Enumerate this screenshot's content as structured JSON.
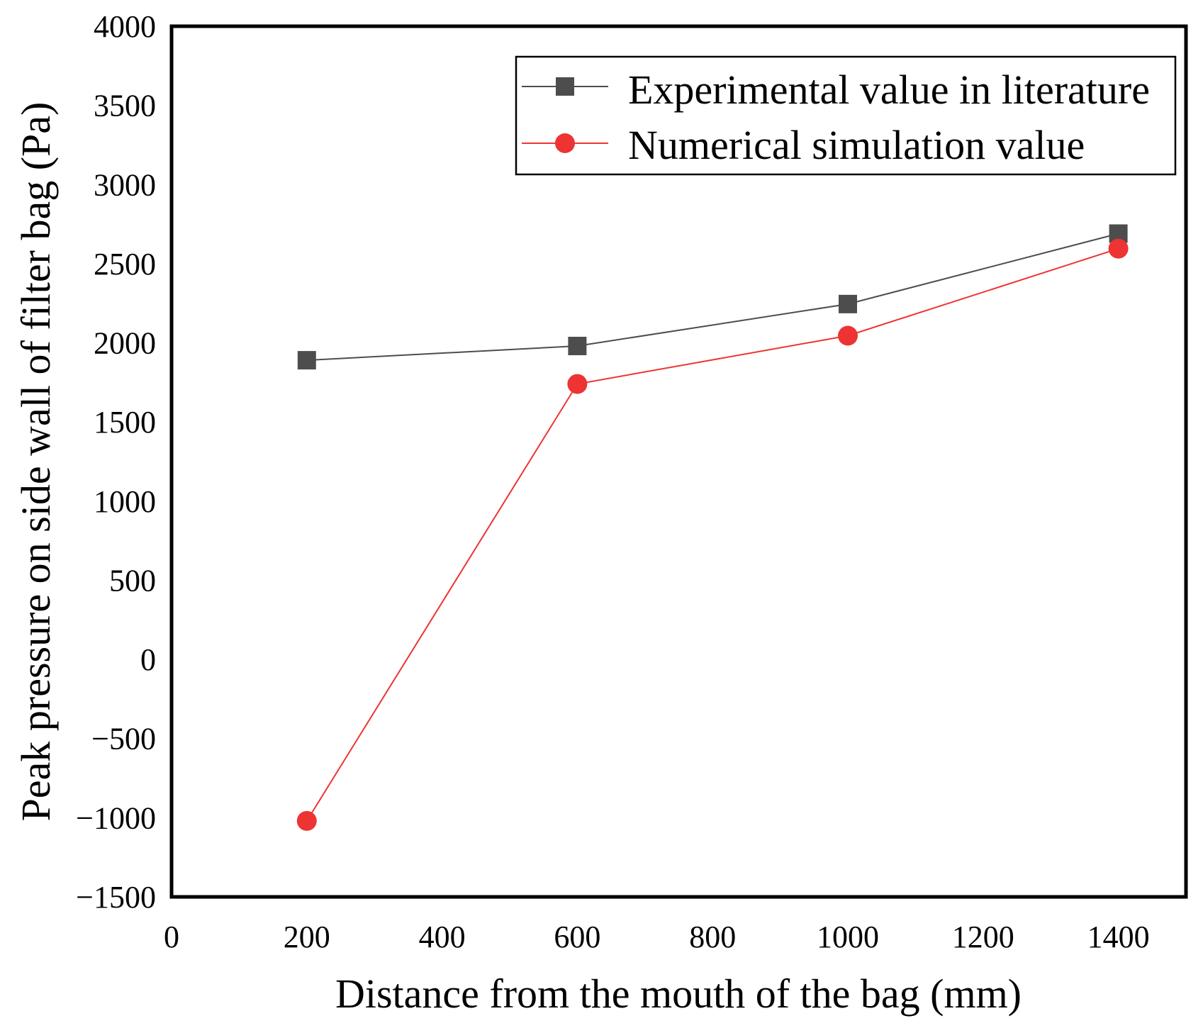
{
  "chart_data": {
    "type": "line",
    "title": "",
    "xlabel": "Distance from the mouth of the bag (mm)",
    "ylabel": "Peak pressure on side wall of filter bag (Pa)",
    "xlim": [
      0,
      1500
    ],
    "ylim": [
      -1500,
      4000
    ],
    "xticks": [
      0,
      200,
      400,
      600,
      800,
      1000,
      1200,
      1400
    ],
    "yticks": [
      -1500,
      -1000,
      -500,
      0,
      500,
      1000,
      1500,
      2000,
      2500,
      3000,
      3500,
      4000
    ],
    "x": [
      200,
      600,
      1000,
      1400
    ],
    "grid": false,
    "legend_position": "top-right",
    "series": [
      {
        "name": "Experimental value in literature",
        "values": [
          1890,
          1980,
          2245,
          2690
        ],
        "color": "#4d4d4d",
        "marker": "square"
      },
      {
        "name": "Numerical simulation value",
        "values": [
          -1020,
          1740,
          2045,
          2595
        ],
        "color": "#ee3333",
        "marker": "circle"
      }
    ]
  }
}
